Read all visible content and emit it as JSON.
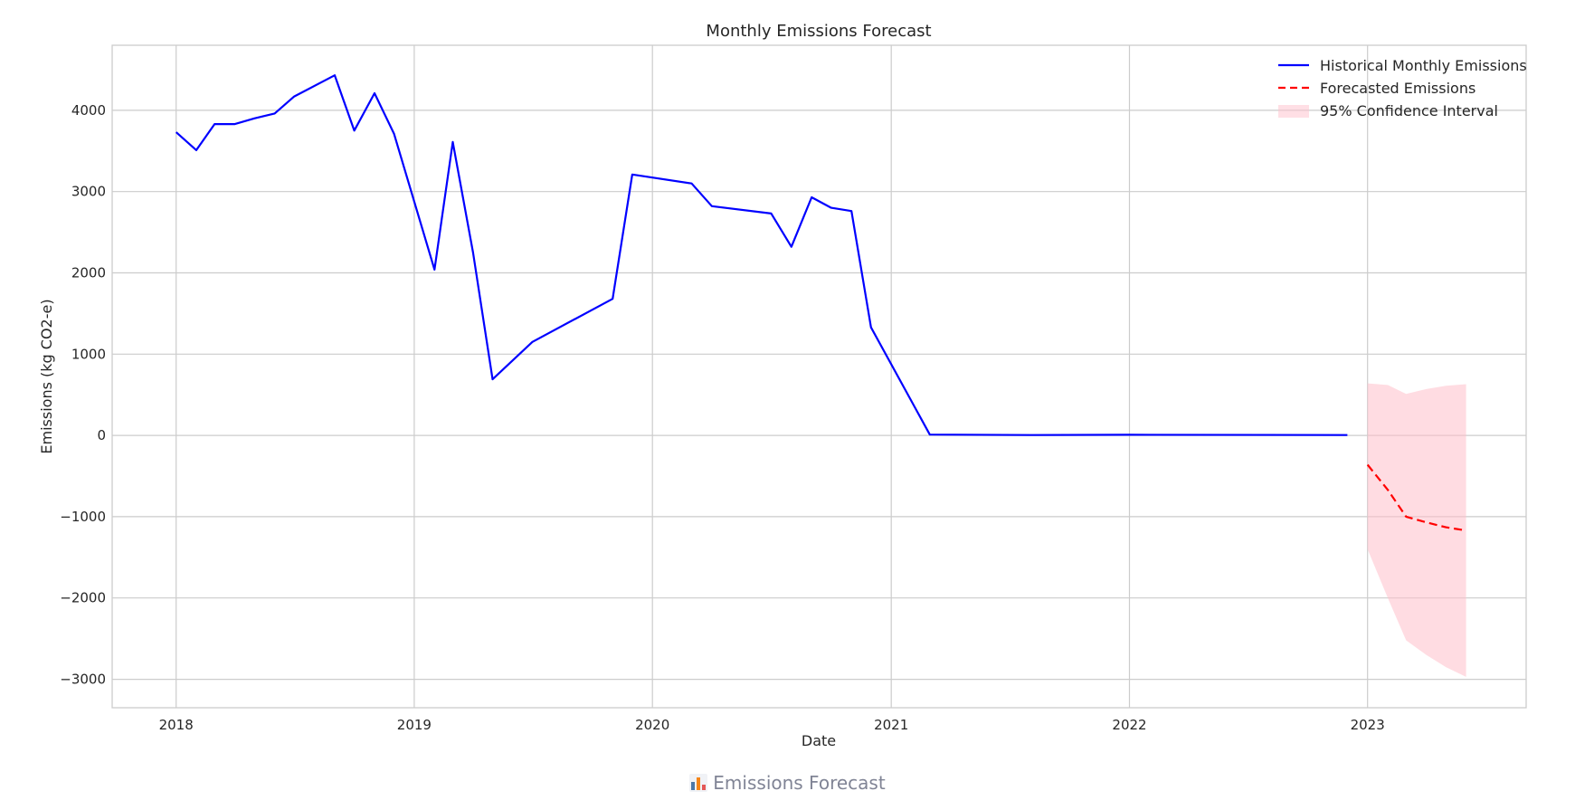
{
  "chart_data": {
    "type": "line",
    "title": "Monthly Emissions Forecast",
    "xlabel": "Date",
    "ylabel": "Emissions (kg CO2-e)",
    "xlim": [
      "2017-09-25",
      "2023-09-01"
    ],
    "ylim": [
      -3350,
      4800
    ],
    "x_ticks": [
      "2018-01-01",
      "2019-01-01",
      "2020-01-01",
      "2021-01-01",
      "2022-01-01",
      "2023-01-01"
    ],
    "x_tick_labels": [
      "2018",
      "2019",
      "2020",
      "2021",
      "2022",
      "2023"
    ],
    "y_ticks": [
      4000,
      3000,
      2000,
      1000,
      0,
      -1000,
      -2000,
      -3000
    ],
    "y_tick_labels": [
      "4000",
      "3000",
      "2000",
      "1000",
      "0",
      "−1000",
      "−2000",
      "−3000"
    ],
    "grid": true,
    "legend_position": "top-right",
    "series": [
      {
        "name": "Historical Monthly Emissions",
        "style": "solid",
        "color": "#0000ff",
        "points": [
          [
            "2018-01-01",
            3730
          ],
          [
            "2018-02-01",
            3510
          ],
          [
            "2018-03-01",
            3830
          ],
          [
            "2018-04-01",
            3830
          ],
          [
            "2018-05-01",
            3900
          ],
          [
            "2018-06-01",
            3960
          ],
          [
            "2018-07-01",
            4170
          ],
          [
            "2018-09-01",
            4430
          ],
          [
            "2018-10-01",
            3750
          ],
          [
            "2018-11-01",
            4210
          ],
          [
            "2018-12-01",
            3710
          ],
          [
            "2019-02-01",
            2040
          ],
          [
            "2019-03-01",
            3610
          ],
          [
            "2019-04-01",
            2250
          ],
          [
            "2019-05-01",
            690
          ],
          [
            "2019-07-01",
            1150
          ],
          [
            "2019-11-01",
            1680
          ],
          [
            "2019-12-01",
            3210
          ],
          [
            "2020-03-01",
            3100
          ],
          [
            "2020-04-01",
            2820
          ],
          [
            "2020-07-01",
            2730
          ],
          [
            "2020-08-01",
            2320
          ],
          [
            "2020-09-01",
            2930
          ],
          [
            "2020-10-01",
            2800
          ],
          [
            "2020-11-01",
            2760
          ],
          [
            "2020-12-01",
            1330
          ],
          [
            "2021-03-01",
            10
          ],
          [
            "2021-08-01",
            5
          ],
          [
            "2022-01-01",
            8
          ],
          [
            "2022-12-01",
            5
          ]
        ]
      },
      {
        "name": "Forecasted Emissions",
        "style": "dashed",
        "color": "#ff0000",
        "points": [
          [
            "2023-01-01",
            -360
          ],
          [
            "2023-02-01",
            -670
          ],
          [
            "2023-03-01",
            -1000
          ],
          [
            "2023-04-01",
            -1070
          ],
          [
            "2023-05-01",
            -1130
          ],
          [
            "2023-06-01",
            -1170
          ]
        ]
      }
    ],
    "confidence_interval": {
      "name": "95% Confidence Interval",
      "color": "#ffc0cb",
      "x": [
        "2023-01-01",
        "2023-02-01",
        "2023-03-01",
        "2023-04-01",
        "2023-05-01",
        "2023-06-01"
      ],
      "lower": [
        -1400,
        -2000,
        -2520,
        -2700,
        -2850,
        -2970
      ],
      "upper": [
        640,
        620,
        510,
        570,
        610,
        630
      ]
    }
  },
  "caption": {
    "icon": "bar-chart-icon",
    "text": "Emissions Forecast"
  }
}
